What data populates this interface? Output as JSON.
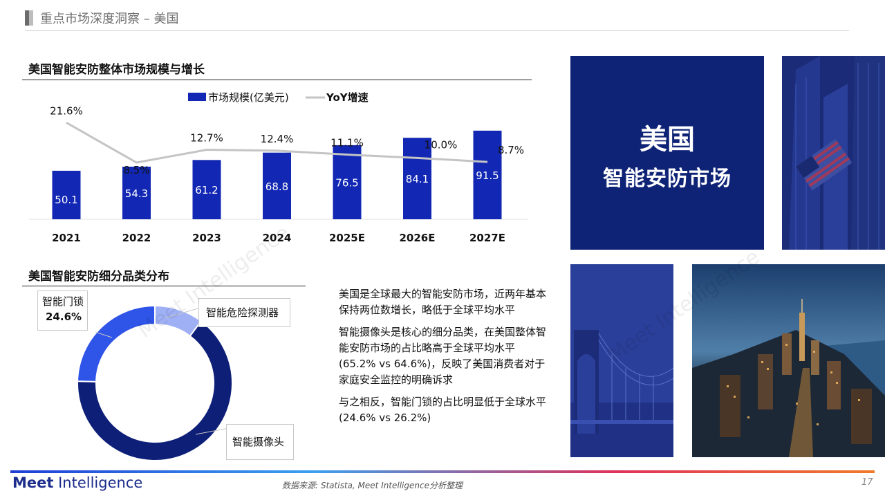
{
  "header": {
    "title": "重点市场深度洞察 – 美国"
  },
  "bar_section": {
    "title": "美国智能安防整体市场规模与增长"
  },
  "donut_section": {
    "title": "美国智能安防细分品类分布"
  },
  "chart_data": [
    {
      "type": "bar",
      "title": "美国智能安防整体市场规模与增长",
      "categories": [
        "2021",
        "2022",
        "2023",
        "2024",
        "2025E",
        "2026E",
        "2027E"
      ],
      "series": [
        {
          "name": "市场规模(亿美元)",
          "type": "bar",
          "color": "#1227b3",
          "values": [
            50.1,
            54.3,
            61.2,
            68.8,
            76.5,
            84.1,
            91.5
          ],
          "labels": [
            "50.1",
            "54.3",
            "61.2",
            "68.8",
            "76.5",
            "84.1",
            "91.5"
          ]
        },
        {
          "name": "YoY增速",
          "type": "line",
          "color": "#c4c4c4",
          "values": [
            21.6,
            8.5,
            12.7,
            12.4,
            11.1,
            10.0,
            8.7
          ],
          "labels": [
            "21.6%",
            "8.5%",
            "12.7%",
            "12.4%",
            "11.1%",
            "10.0%",
            "8.7%"
          ]
        }
      ],
      "legend": "top",
      "grid": false
    },
    {
      "type": "pie",
      "variant": "donut",
      "title": "美国智能安防细分品类分布",
      "slices": [
        {
          "name": "智能摄像头",
          "value": 65.2,
          "color": "#0e1f78"
        },
        {
          "name": "智能门锁",
          "value": 24.6,
          "color": "#2f54e8",
          "label": "24.6%"
        },
        {
          "name": "智能危险探测器",
          "value": 10.2,
          "color": "#9fb0f5"
        }
      ]
    }
  ],
  "callouts": {
    "lock": {
      "name": "智能门锁",
      "value": "24.6%"
    },
    "detector": {
      "name": "智能危险探测器"
    },
    "camera": {
      "name": "智能摄像头"
    }
  },
  "notes": {
    "p1": "美国是全球最大的智能安防市场，近两年基本保持两位数增长，略低于全球平均水平",
    "p2": "智能摄像头是核心的细分品类，在美国整体智能安防市场的占比略高于全球平均水平 (65.2% vs 64.6%)，反映了美国消费者对于家庭安全监控的明确诉求",
    "p3": "与之相反，智能门锁的占比明显低于全球水平 (24.6% vs 26.2%)"
  },
  "card": {
    "line1": "美国",
    "line2": "智能安防市场"
  },
  "footer": {
    "logo_bold": "Meet",
    "logo_rest": " Intelligence",
    "source": "数据来源: Statista, Meet Intelligence分析整理",
    "page": "17"
  },
  "watermark": "Meet Intelligence",
  "colors": {
    "bar": "#1227b3",
    "line": "#c4c4c4",
    "card": "#0e2376"
  }
}
